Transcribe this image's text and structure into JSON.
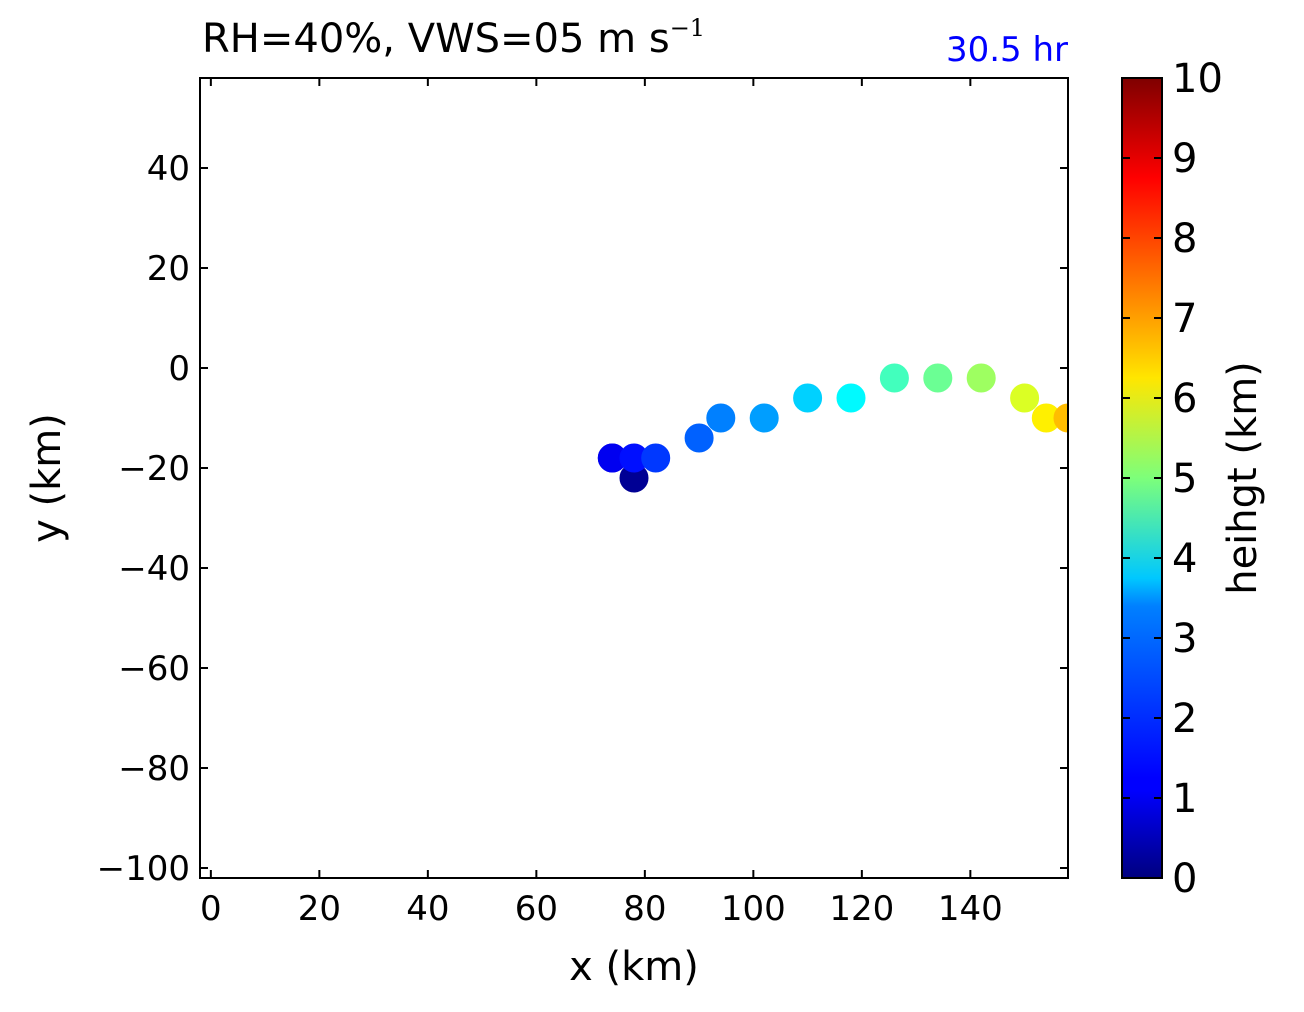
{
  "chart_data": {
    "type": "scatter",
    "title": "RH=40%, VWS=05 m s",
    "title_superscript": "−1",
    "annotation": "30.5 hr",
    "annotation_color": "#0000ff",
    "xlabel": "x (km)",
    "ylabel": "y (km)",
    "xlim": [
      -2,
      158
    ],
    "ylim": [
      -102,
      58
    ],
    "xticks": [
      "0",
      "20",
      "40",
      "60",
      "80",
      "100",
      "120",
      "140"
    ],
    "yticks": [
      "−100",
      "−80",
      "−60",
      "−40",
      "−20",
      "0",
      "20",
      "40"
    ],
    "grid": false,
    "colorbar": {
      "label": "heihgt (km)",
      "range": [
        0,
        10
      ],
      "ticks": [
        "0",
        "1",
        "2",
        "3",
        "4",
        "5",
        "6",
        "7",
        "8",
        "9",
        "10"
      ],
      "colormap": "jet"
    },
    "points": [
      {
        "x": 78,
        "y": -22,
        "height": 0.2
      },
      {
        "x": 74,
        "y": -18,
        "height": 1.0
      },
      {
        "x": 74,
        "y": -18,
        "height": 1.1
      },
      {
        "x": 78,
        "y": -18,
        "height": 1.4
      },
      {
        "x": 82,
        "y": -18,
        "height": 1.8
      },
      {
        "x": 90,
        "y": -14,
        "height": 2.2
      },
      {
        "x": 94,
        "y": -10,
        "height": 2.5
      },
      {
        "x": 102,
        "y": -10,
        "height": 2.8
      },
      {
        "x": 110,
        "y": -6,
        "height": 3.3
      },
      {
        "x": 118,
        "y": -6,
        "height": 3.7
      },
      {
        "x": 126,
        "y": -2,
        "height": 4.4
      },
      {
        "x": 134,
        "y": -2,
        "height": 4.8
      },
      {
        "x": 142,
        "y": -2,
        "height": 5.3
      },
      {
        "x": 150,
        "y": -6,
        "height": 5.9
      },
      {
        "x": 154,
        "y": -10,
        "height": 6.4
      },
      {
        "x": 158,
        "y": -10,
        "height": 6.9
      }
    ]
  }
}
